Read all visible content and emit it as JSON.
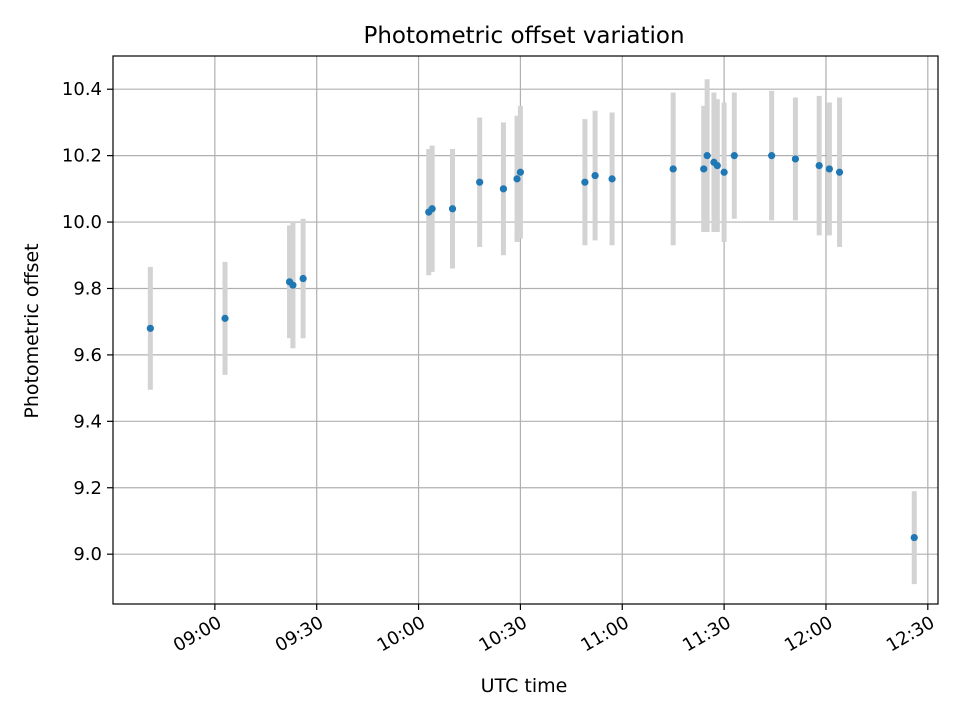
{
  "chart_data": {
    "type": "scatter",
    "title": "Photometric offset variation",
    "xlabel": "UTC time",
    "ylabel": "Photometric offset",
    "x_tick_labels": [
      "09:00",
      "09:30",
      "10:00",
      "10:30",
      "11:00",
      "11:30",
      "12:00",
      "12:30"
    ],
    "y_tick_labels": [
      "9.0",
      "9.2",
      "9.4",
      "9.6",
      "9.8",
      "10.0",
      "10.2",
      "10.4"
    ],
    "xlim": [
      "08:30",
      "12:33"
    ],
    "ylim": [
      8.85,
      10.5
    ],
    "grid": true,
    "marker_color": "#1f77b4",
    "errorbar_color": "#d3d3d3",
    "points": [
      {
        "x": "08:41",
        "y": 9.68,
        "err": 0.185
      },
      {
        "x": "09:03",
        "y": 9.71,
        "err": 0.17
      },
      {
        "x": "09:22",
        "y": 9.82,
        "err": 0.17
      },
      {
        "x": "09:23",
        "y": 9.81,
        "err": 0.19
      },
      {
        "x": "09:26",
        "y": 9.83,
        "err": 0.18
      },
      {
        "x": "10:03",
        "y": 10.03,
        "err": 0.19
      },
      {
        "x": "10:04",
        "y": 10.04,
        "err": 0.19
      },
      {
        "x": "10:10",
        "y": 10.04,
        "err": 0.18
      },
      {
        "x": "10:18",
        "y": 10.12,
        "err": 0.195
      },
      {
        "x": "10:25",
        "y": 10.1,
        "err": 0.2
      },
      {
        "x": "10:29",
        "y": 10.13,
        "err": 0.19
      },
      {
        "x": "10:30",
        "y": 10.15,
        "err": 0.2
      },
      {
        "x": "10:49",
        "y": 10.12,
        "err": 0.19
      },
      {
        "x": "10:52",
        "y": 10.14,
        "err": 0.195
      },
      {
        "x": "10:57",
        "y": 10.13,
        "err": 0.2
      },
      {
        "x": "11:15",
        "y": 10.16,
        "err": 0.23
      },
      {
        "x": "11:24",
        "y": 10.16,
        "err": 0.19
      },
      {
        "x": "11:25",
        "y": 10.2,
        "err": 0.23
      },
      {
        "x": "11:27",
        "y": 10.18,
        "err": 0.21
      },
      {
        "x": "11:28",
        "y": 10.17,
        "err": 0.2
      },
      {
        "x": "11:30",
        "y": 10.15,
        "err": 0.21
      },
      {
        "x": "11:33",
        "y": 10.2,
        "err": 0.19
      },
      {
        "x": "11:44",
        "y": 10.2,
        "err": 0.195
      },
      {
        "x": "11:51",
        "y": 10.19,
        "err": 0.185
      },
      {
        "x": "11:58",
        "y": 10.17,
        "err": 0.21
      },
      {
        "x": "12:01",
        "y": 10.16,
        "err": 0.2
      },
      {
        "x": "12:04",
        "y": 10.15,
        "err": 0.225
      },
      {
        "x": "12:26",
        "y": 9.05,
        "err": 0.14
      }
    ]
  }
}
